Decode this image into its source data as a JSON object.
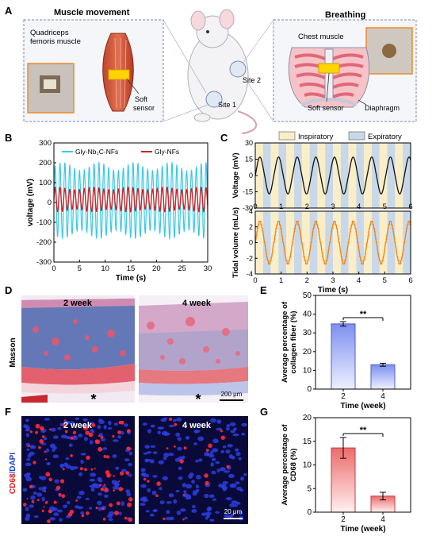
{
  "panels": {
    "A": {
      "letter": "A",
      "muscle_title": "Muscle movement",
      "quadriceps_label": "Quadriceps femoris muscle",
      "soft_sensor_label_1": "Soft sensor",
      "site_1": "Site 1",
      "site_2": "Site 2",
      "breathing_title": "Breathing",
      "chest_muscle_label": "Chest muscle",
      "soft_sensor_label_2": "Soft sensor",
      "diaphragm_label": "Diaphragm"
    },
    "B": {
      "letter": "B",
      "chart_data": {
        "type": "line",
        "xlabel": "Time (s)",
        "ylabel": "voltage (mV)",
        "xlim": [
          0,
          30
        ],
        "ylim": [
          -300,
          300
        ],
        "xticks": [
          0,
          5,
          10,
          15,
          20,
          25,
          30
        ],
        "yticks": [
          -300,
          -200,
          -100,
          0,
          100,
          200,
          300
        ],
        "legend_position": "top",
        "series": [
          {
            "name": "Gly-Nb₂C-NFs",
            "color": "#3cc8e6",
            "period_s": 0.95,
            "amplitude_mV": 170,
            "offset_mV": 10
          },
          {
            "name": "Gly-NFs",
            "color": "#c8282d",
            "period_s": 0.95,
            "amplitude_mV": 55,
            "offset_mV": 15
          }
        ]
      }
    },
    "C": {
      "letter": "C",
      "chart_data": {
        "type": "line",
        "xlabel": "Time (s)",
        "xlim": [
          0,
          6
        ],
        "xticks": [
          0,
          1,
          2,
          3,
          4,
          5,
          6
        ],
        "legend": [
          "Inspiratory",
          "Expiratory"
        ],
        "legend_colors": [
          "#faeec8",
          "#c8d8e8"
        ],
        "legend_position": "top",
        "phase_period_s": 0.3,
        "top": {
          "ylabel": "Voltage (mV)",
          "ylim": [
            -30,
            30
          ],
          "yticks": [
            -30,
            -15,
            0,
            15,
            30
          ],
          "color": "#111111",
          "period_s": 0.72,
          "amplitude_mV": 17
        },
        "bottom": {
          "ylabel": "Tidal volume (mL/s)",
          "ylim": [
            -4,
            4
          ],
          "yticks": [
            -4,
            -2,
            0,
            2,
            4
          ],
          "color": "#f08214",
          "period_s": 0.72,
          "amplitude": 2.6
        }
      }
    },
    "D": {
      "letter": "D",
      "stain_label": "Masson",
      "left_label": "2 week",
      "right_label": "4 week",
      "scale_bar": "200 μm",
      "asterisk": "*"
    },
    "E": {
      "letter": "E",
      "chart_data": {
        "type": "bar",
        "categories": [
          "2",
          "4"
        ],
        "values": [
          34.8,
          13.0
        ],
        "errors": [
          1.2,
          0.8
        ],
        "xlabel": "Time (week)",
        "ylabel": "Average percentage of collagen fiber (%)",
        "ylim": [
          0,
          50
        ],
        "yticks": [
          0,
          10,
          20,
          30,
          40,
          50
        ],
        "significance": "**",
        "bar_color": "#8ca0f0"
      }
    },
    "F": {
      "letter": "F",
      "stain_label_red": "CD68",
      "stain_label_sep": "/",
      "stain_label_blue": "DAPI",
      "left_label": "2 week",
      "right_label": "4 week",
      "scale_bar": "20 μm"
    },
    "G": {
      "letter": "G",
      "chart_data": {
        "type": "bar",
        "categories": [
          "2",
          "4"
        ],
        "values": [
          13.6,
          3.4
        ],
        "errors": [
          2.2,
          0.8
        ],
        "xlabel": "Time (week)",
        "ylabel": "Average percentage of CD68 (%)",
        "ylim": [
          0,
          20
        ],
        "yticks": [
          0,
          5,
          10,
          15,
          20
        ],
        "significance": "**",
        "bar_color": "#f08c8c"
      }
    }
  }
}
